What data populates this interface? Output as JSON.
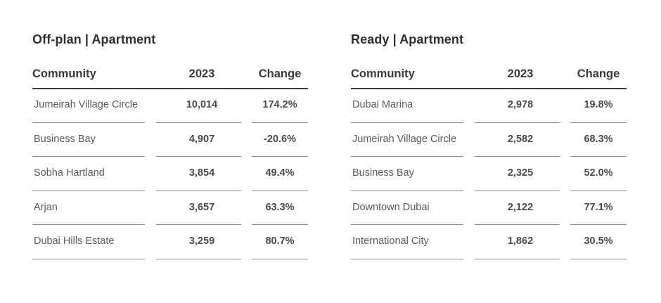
{
  "tables": [
    {
      "title": "Off-plan | Apartment",
      "headers": {
        "community": "Community",
        "year": "2023",
        "change": "Change"
      },
      "rows": [
        {
          "community": "Jumeirah Village Circle",
          "value": "10,014",
          "change": "174.2%"
        },
        {
          "community": "Business Bay",
          "value": "4,907",
          "change": "-20.6%"
        },
        {
          "community": "Sobha Hartland",
          "value": "3,854",
          "change": "49.4%"
        },
        {
          "community": "Arjan",
          "value": "3,657",
          "change": "63.3%"
        },
        {
          "community": "Dubai Hills Estate",
          "value": "3,259",
          "change": "80.7%"
        }
      ]
    },
    {
      "title": "Ready | Apartment",
      "headers": {
        "community": "Community",
        "year": "2023",
        "change": "Change"
      },
      "rows": [
        {
          "community": "Dubai Marina",
          "value": "2,978",
          "change": "19.8%"
        },
        {
          "community": "Jumeirah Village Circle",
          "value": "2,582",
          "change": "68.3%"
        },
        {
          "community": "Business Bay",
          "value": "2,325",
          "change": "52.0%"
        },
        {
          "community": "Downtown Dubai",
          "value": "2,122",
          "change": "77.1%"
        },
        {
          "community": "International City",
          "value": "1,862",
          "change": "30.5%"
        }
      ]
    }
  ]
}
